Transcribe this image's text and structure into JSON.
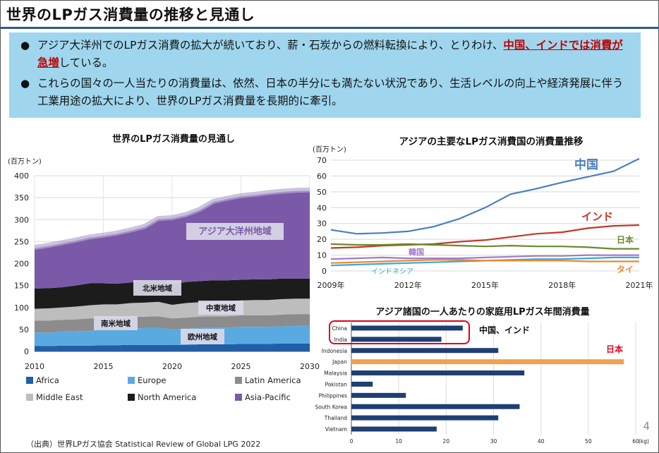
{
  "title": "世界のLPガス消費量の推移と見通し",
  "summary": {
    "bullet1_pre": "アジア大洋州でのLPガス消費の拡大が続いており、薪・石炭からの燃料転換により、とりわけ、",
    "bullet1_em": "中国、インドでは消費が急増",
    "bullet1_post": "している。",
    "bullet2": "これらの国々の一人当たりの消費量は、依然、日本の半分にも満たない状況であり、生活レベルの向上や経済発展に伴う工業用途の拡大により、世界のLPガス消費量を長期的に牽引。",
    "bullet_symbol": "●"
  },
  "chart_data": [
    {
      "type": "area",
      "stacked": true,
      "title": "世界のLPガス消費量の見通し",
      "ylabel": "(百万トン)",
      "ylim": [
        0,
        400
      ],
      "yticks": [
        0,
        50,
        100,
        150,
        200,
        250,
        300,
        350,
        400
      ],
      "x": [
        2010,
        2011,
        2012,
        2013,
        2014,
        2015,
        2016,
        2017,
        2018,
        2019,
        2020,
        2021,
        2022,
        2023,
        2024,
        2025,
        2026,
        2027,
        2028,
        2029,
        2030
      ],
      "xticks": [
        2010,
        2015,
        2020,
        2025,
        2030
      ],
      "grid": true,
      "legend_position": "bottom",
      "series": [
        {
          "name": "Africa",
          "color": "#1f5fa9",
          "values": [
            12,
            12,
            13,
            13,
            13,
            14,
            14,
            15,
            15,
            15,
            15,
            15,
            16,
            16,
            16,
            17,
            17,
            17,
            18,
            18,
            18
          ]
        },
        {
          "name": "Europe",
          "color": "#5aaae2",
          "values": [
            31,
            31,
            32,
            33,
            34,
            35,
            36,
            37,
            38,
            39,
            35,
            37,
            37,
            38,
            38,
            39,
            39,
            39,
            39,
            40,
            40
          ]
        },
        {
          "name": "Latin America",
          "color": "#8c8c8c",
          "values": [
            27,
            27,
            27,
            27,
            28,
            27,
            26,
            26,
            26,
            26,
            25,
            25,
            26,
            26,
            26,
            26,
            26,
            26,
            27,
            27,
            27
          ]
        },
        {
          "name": "Middle East",
          "color": "#bdbdbd",
          "values": [
            27,
            28,
            28,
            29,
            30,
            31,
            31,
            32,
            32,
            33,
            31,
            33,
            33,
            34,
            34,
            34,
            35,
            35,
            35,
            35,
            35
          ]
        },
        {
          "name": "North America",
          "color": "#1c1c1c",
          "values": [
            46,
            46,
            46,
            48,
            50,
            48,
            47,
            47,
            48,
            50,
            47,
            48,
            48,
            48,
            48,
            47,
            47,
            47,
            47,
            46,
            46
          ]
        },
        {
          "name": "Asia-Pacific",
          "color": "#7a5aa8",
          "values": [
            92,
            96,
            100,
            102,
            104,
            108,
            114,
            118,
            124,
            138,
            150,
            152,
            162,
            178,
            185,
            190,
            192,
            196,
            197,
            199,
            200
          ]
        }
      ],
      "annotations": [
        "アジア大洋州地域",
        "北米地域",
        "中東地域",
        "南米地域",
        "欧州地域"
      ]
    },
    {
      "type": "line",
      "title": "アジアの主要なLPガス消費国の消費量推移",
      "ylabel": "(百万トン)",
      "ylim": [
        0,
        70
      ],
      "yticks": [
        0,
        10,
        20,
        30,
        40,
        50,
        60,
        70
      ],
      "x": [
        2009,
        2010,
        2011,
        2012,
        2013,
        2014,
        2015,
        2016,
        2017,
        2018,
        2019,
        2020,
        2021
      ],
      "xticks": [
        "2009年",
        "2012年",
        "2015年",
        "2018年",
        "2021年"
      ],
      "grid": true,
      "series": [
        {
          "name": "中国",
          "color": "#4a7fc1",
          "values": [
            26,
            23.5,
            24,
            25,
            28,
            33,
            40,
            48.5,
            52,
            56,
            59.5,
            63,
            71
          ]
        },
        {
          "name": "インド",
          "color": "#c0392b",
          "values": [
            14.5,
            15,
            16,
            16.5,
            17,
            18.5,
            19.5,
            21.5,
            23.5,
            24.5,
            27,
            28.5,
            29
          ]
        },
        {
          "name": "日本",
          "color": "#6a8a2a",
          "values": [
            17,
            16.5,
            16.5,
            17,
            16.5,
            16,
            15.5,
            16,
            15.5,
            15.5,
            15,
            14,
            14
          ]
        },
        {
          "name": "韓国",
          "color": "#a07ac8",
          "values": [
            7.5,
            8,
            8.5,
            8,
            8,
            8,
            8.5,
            9,
            9.5,
            9.5,
            10,
            10,
            10
          ]
        },
        {
          "name": "インドネシア",
          "color": "#39a8d6",
          "values": [
            3.5,
            4,
            4.5,
            5,
            5.5,
            6,
            6.5,
            7,
            7.5,
            7.5,
            8,
            8.5,
            8.5
          ]
        },
        {
          "name": "タイ",
          "color": "#e98a2a",
          "values": [
            5,
            5.5,
            6,
            6.5,
            7,
            7,
            6.5,
            6.5,
            6.5,
            6.5,
            6,
            6,
            6
          ]
        }
      ]
    },
    {
      "type": "bar",
      "orientation": "horizontal",
      "title": "アジア諸国の一人あたりの家庭用LPガス年間消費量",
      "xlabel": "(kg)",
      "xlim": [
        0,
        60
      ],
      "xticks": [
        0,
        10,
        20,
        30,
        40,
        50,
        60
      ],
      "categories": [
        "China",
        "India",
        "Indonesia",
        "Japan",
        "Malaysia",
        "Pakistan",
        "Philippines",
        "South Korea",
        "Thailand",
        "Vietnam"
      ],
      "values": [
        23.5,
        19,
        31,
        57.5,
        36.5,
        4.5,
        11.5,
        35.5,
        31,
        18
      ],
      "bar_color": "#1f3f73",
      "highlight_color": "#f0a050",
      "highlight": [
        "Japan"
      ],
      "annotations": [
        "中国、インド",
        "日本"
      ]
    }
  ],
  "page_number": "4",
  "source": "（出典）世界LPガス協会  Statistical Review of Global LPG 2022"
}
